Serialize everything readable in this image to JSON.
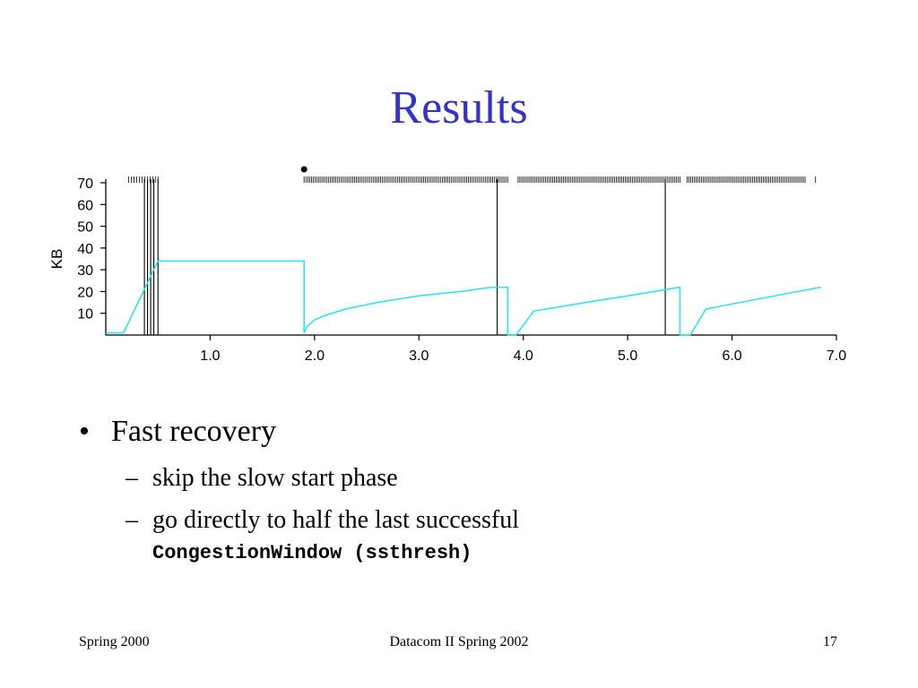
{
  "slide": {
    "title": "Results",
    "bullets": [
      {
        "text": "Fast recovery",
        "subs": [
          {
            "text": "skip the slow start phase"
          },
          {
            "text_before": "go directly to half the last successful",
            "code1": "CongestionWindow",
            "mid": " (",
            "code2": "ssthresh",
            "after": ")"
          }
        ]
      }
    ],
    "footer": {
      "left": "Spring 2000",
      "center": "Datacom II Spring 2002",
      "right": "17"
    },
    "bullet_glyph": "•",
    "dash_glyph": "–"
  },
  "chart_data": {
    "type": "line",
    "title": "",
    "xlabel": "",
    "ylabel": "KB",
    "xlim": [
      0,
      7.0
    ],
    "ylim": [
      0,
      70
    ],
    "x_ticks": [
      1.0,
      2.0,
      3.0,
      4.0,
      5.0,
      6.0,
      7.0
    ],
    "x_tick_labels": [
      "1.0",
      "2.0",
      "3.0",
      "4.0",
      "5.0",
      "6.0",
      "7.0"
    ],
    "y_ticks": [
      10,
      20,
      30,
      40,
      50,
      60,
      70
    ],
    "y_tick_labels": [
      "10",
      "20",
      "30",
      "40",
      "50",
      "60",
      "70"
    ],
    "grid": false,
    "colors": {
      "congestion_window": "#22e5ee",
      "events": "#000000"
    },
    "series": [
      {
        "x": [
          0,
          0.17,
          0.5,
          1.9,
          1.9,
          1.93,
          2.0,
          2.1,
          2.3,
          2.6,
          3.0,
          3.4,
          3.7,
          3.85,
          3.85,
          3.93,
          3.93,
          4.1,
          4.6,
          5.0,
          5.5,
          5.5,
          5.6,
          5.6,
          5.75,
          6.3,
          6.85
        ],
        "y": [
          1,
          1,
          34,
          34,
          1,
          4,
          7,
          9,
          12,
          15,
          18,
          20,
          22,
          22,
          0,
          0,
          0,
          11,
          15,
          18,
          22,
          0,
          0,
          0,
          12,
          17,
          22
        ]
      }
    ],
    "event_lines": [
      0.37,
      0.4,
      0.43,
      0.46,
      0.5,
      3.75,
      5.36
    ],
    "timeout_marker_x": 1.9,
    "packet_tick_ranges": [
      {
        "from": 0.22,
        "to": 0.5,
        "count": 12
      },
      {
        "from": 1.9,
        "to": 3.85,
        "count": 110
      },
      {
        "from": 3.95,
        "to": 5.5,
        "count": 90
      },
      {
        "from": 5.57,
        "to": 6.7,
        "count": 66
      },
      {
        "from": 6.8,
        "to": 6.8,
        "count": 1
      }
    ]
  }
}
